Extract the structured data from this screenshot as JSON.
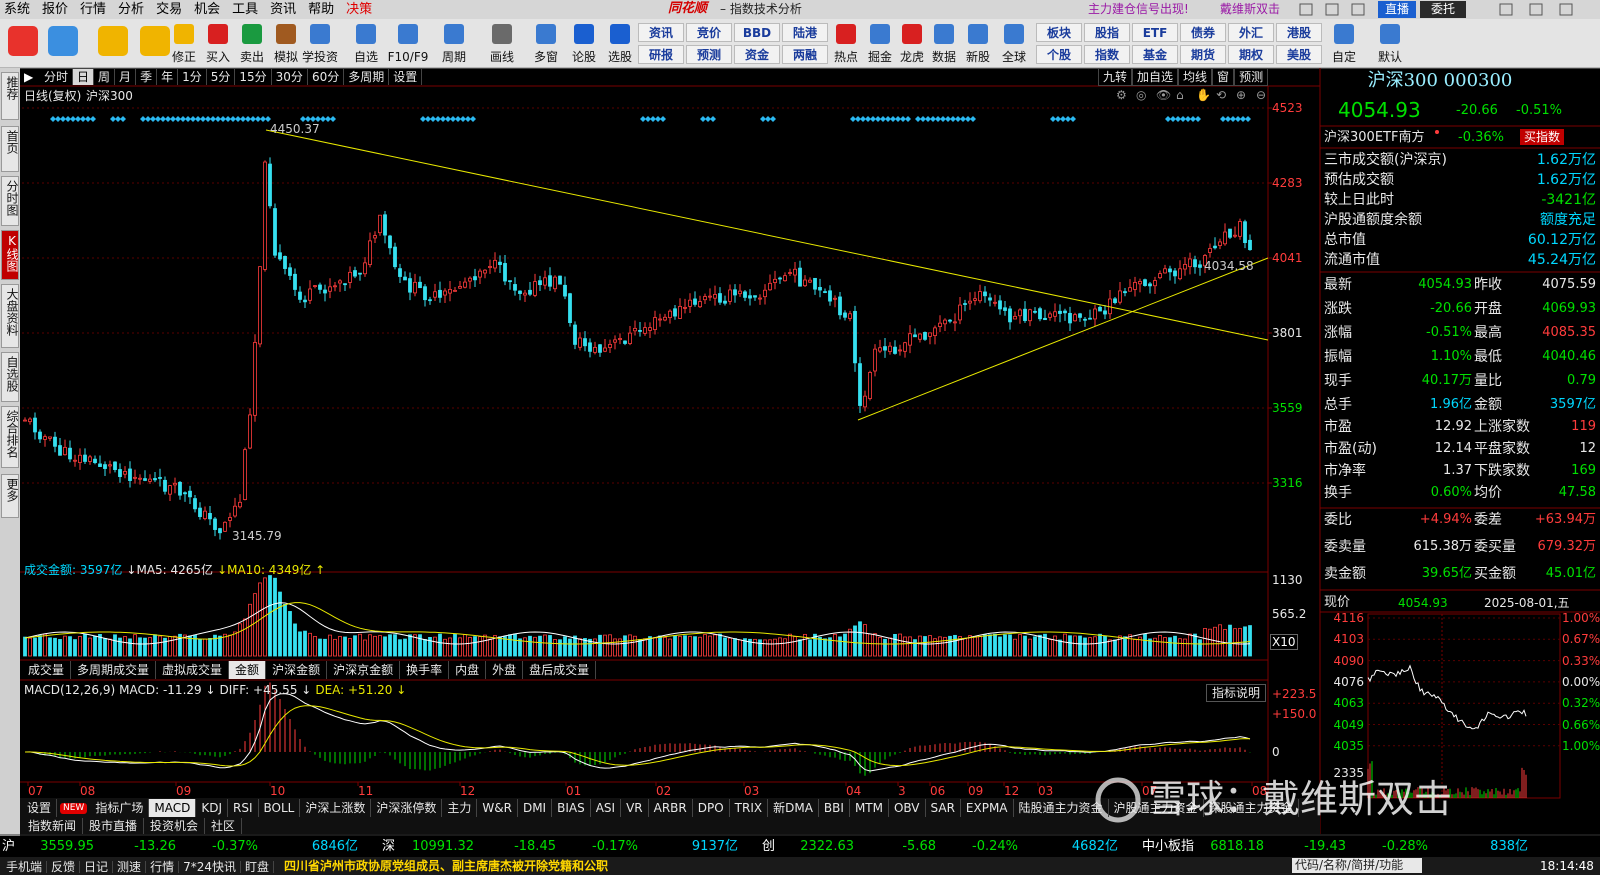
{
  "menu": [
    "系统",
    "报价",
    "行情",
    "分析",
    "交易",
    "机会",
    "工具",
    "资讯",
    "帮助",
    "决策"
  ],
  "app_title": "同花顺",
  "window_title": "– 指数技术分析",
  "promo": [
    "主力建仓信号出现!",
    "戴维斯双击"
  ],
  "top_buttons": [
    "直播",
    "委托"
  ],
  "toolbar": [
    "修正",
    "买入",
    "卖出",
    "模拟",
    "学投资",
    "自选",
    "F10/F9",
    "周期",
    "画线",
    "多窗",
    "论股",
    "选股"
  ],
  "toolbar_grid": [
    [
      "资讯",
      "竞价",
      "BBD",
      "陆港"
    ],
    [
      "研报",
      "预测",
      "资金",
      "两融"
    ]
  ],
  "toolbar2": [
    "热点",
    "掘金",
    "龙虎",
    "数据",
    "新股",
    "全球"
  ],
  "toolbar_grid2": [
    [
      "板块",
      "股指",
      "ETF",
      "债券",
      "外汇",
      "港股"
    ],
    [
      "个股",
      "指数",
      "基金",
      "期货",
      "期权",
      "美股"
    ]
  ],
  "toolbar3": [
    "自定",
    "默认"
  ],
  "sidebar": [
    "推荐",
    "首页",
    "分时图",
    "K线图",
    "大盘资料",
    "自选股",
    "综合排名",
    "更多"
  ],
  "periods": [
    "分时",
    "日",
    "周",
    "月",
    "季",
    "年",
    "1分",
    "5分",
    "15分",
    "30分",
    "60分",
    "多周期",
    "设置"
  ],
  "chart_tools": [
    "九转",
    "加自选",
    "均线",
    "窗",
    "预测"
  ],
  "chart": {
    "title": "日线(复权)",
    "name": "沪深300",
    "price_axis": [
      "4523",
      "4283",
      "4041",
      "3801",
      "3559",
      "3316"
    ],
    "high": "4450.37",
    "low": "3145.79",
    "trend_label": "4034.58",
    "volume": {
      "legend": [
        "成交金额: 3597亿",
        "↓MA5: 4265亿",
        "↓MA10: 4349亿 ↑"
      ],
      "axis": [
        "1130",
        "565.2",
        "X10"
      ]
    },
    "indicator_tabs": [
      "成交量",
      "多周期成交量",
      "虚拟成交量",
      "金额",
      "沪深金额",
      "沪深京金额",
      "换手率",
      "内盘",
      "外盘",
      "盘后成交量"
    ],
    "macd": {
      "legend": [
        "MACD(12,26,9)",
        "MACD: -11.29 ↓",
        "DIFF: +45.55 ↓",
        "DEA: +51.20 ↓"
      ],
      "button": "指标说明",
      "axis": [
        "+223.5",
        "+150.0",
        "0"
      ]
    },
    "x_labels": [
      "07",
      "08",
      "09",
      "10",
      "11",
      "12",
      "01",
      "02",
      "03",
      "04",
      "3",
      "06",
      "09",
      "12",
      "03",
      "07",
      "08"
    ]
  },
  "bottom_tabs": [
    "设置",
    "NEW",
    "指标广场",
    "MACD",
    "KDJ",
    "RSI",
    "BOLL",
    "沪深上涨数",
    "沪深涨停数",
    "主力",
    "W&R",
    "DMI",
    "BIAS",
    "ASI",
    "VR",
    "ARBR",
    "DPO",
    "TRIX",
    "新DMA",
    "BBI",
    "MTM",
    "OBV",
    "SAR",
    "EXPMA",
    "陆股通主力资金",
    "沪股通主力资金",
    "深股通主力资金"
  ],
  "bottom_tabs2": [
    "指数新闻",
    "股市直播",
    "投资机会",
    "社区"
  ],
  "quote": {
    "header": "沪深300 000300",
    "price": "4054.93",
    "change": "-20.66",
    "pct": "-0.51%",
    "etf": {
      "name": "沪深300ETF南方",
      "pct": "-0.36%",
      "button": "买指数"
    },
    "summary": [
      [
        "三市成交额(沪深京)",
        "1.62万亿"
      ],
      [
        "预估成交额",
        "1.62万亿"
      ],
      [
        "较上日此时",
        "-3421亿"
      ],
      [
        "沪股通额度余额",
        "额度充足"
      ],
      [
        "总市值",
        "60.12万亿"
      ],
      [
        "流通市值",
        "45.24万亿"
      ]
    ],
    "grid": [
      [
        "最新",
        "4054.93",
        "昨收",
        "4075.59"
      ],
      [
        "涨跌",
        "-20.66",
        "开盘",
        "4069.93"
      ],
      [
        "涨幅",
        "-0.51%",
        "最高",
        "4085.35"
      ],
      [
        "振幅",
        "1.10%",
        "最低",
        "4040.46"
      ],
      [
        "现手",
        "40.17万",
        "量比",
        "0.79"
      ],
      [
        "总手",
        "1.96亿",
        "金额",
        "3597亿"
      ]
    ],
    "stats": [
      [
        "市盈",
        "12.92",
        "上涨家数",
        "119"
      ],
      [
        "市盈(动)",
        "12.14",
        "平盘家数",
        "12"
      ],
      [
        "市净率",
        "1.37",
        "下跌家数",
        "169"
      ],
      [
        "换手",
        "0.60%",
        "均价",
        "47.58"
      ]
    ],
    "orders": [
      [
        "委比",
        "+4.94%",
        "委差",
        "+63.94万"
      ],
      [
        "委卖量",
        "615.38万",
        "委买量",
        "679.32万"
      ],
      [
        "卖金额",
        "39.65亿",
        "买金额",
        "45.01亿"
      ]
    ],
    "mini": {
      "label": "现价",
      "price": "4054.93",
      "date": "2025-08-01,五",
      "left_axis": [
        "4116",
        "4103",
        "4090",
        "4076",
        "4063",
        "4049",
        "4035",
        "2335"
      ],
      "right_axis": [
        "1.00%",
        "0.67%",
        "0.33%",
        "0.00%",
        "0.32%",
        "0.66%",
        "1.00%"
      ]
    }
  },
  "ticker": [
    {
      "name": "沪",
      "price": "3559.95",
      "change": "-13.26",
      "pct": "-0.37%",
      "amount": "6846亿"
    },
    {
      "name": "深",
      "price": "10991.32",
      "change": "-18.45",
      "pct": "-0.17%",
      "amount": "9137亿"
    },
    {
      "name": "创",
      "price": "2322.63",
      "change": "-5.68",
      "pct": "-0.24%",
      "amount": "4682亿"
    },
    {
      "name": "中小板指",
      "price": "6818.18",
      "change": "-19.43",
      "pct": "-0.28%",
      "amount": "838亿"
    }
  ],
  "status": {
    "items": [
      "手机端",
      "反馈",
      "日记",
      "测速",
      "行情",
      "7*24快讯",
      "盯盘"
    ],
    "news": "四川省泸州市政协原党组成员、副主席唐杰被开除党籍和公职",
    "search": "代码/名称/简拼/功能",
    "time": "18:14:48"
  },
  "watermark": "雪球：戴维斯双击"
}
